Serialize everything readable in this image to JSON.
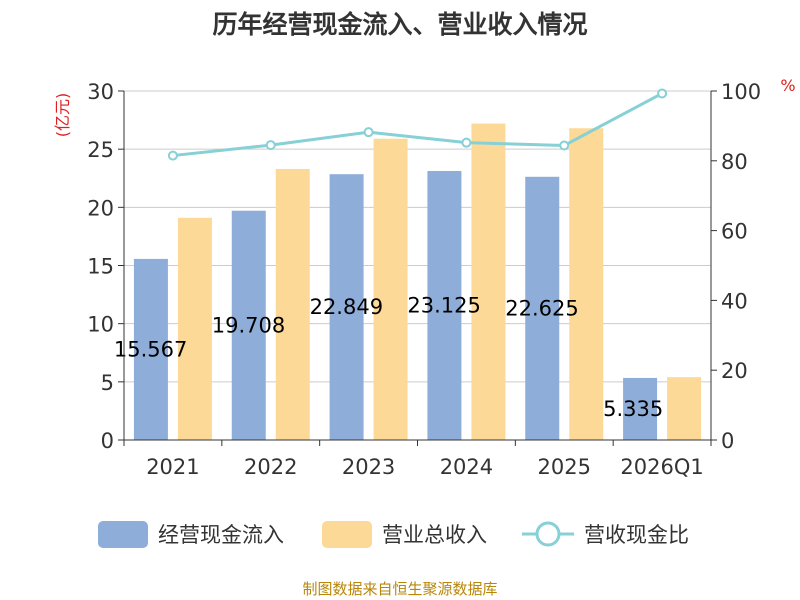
{
  "chart_data": {
    "type": "bar",
    "title": "历年经营现金流入、营业收入情况",
    "categories": [
      "2021",
      "2022",
      "2023",
      "2024",
      "2025",
      "2026Q1"
    ],
    "series": [
      {
        "name": "经营现金流入",
        "type": "bar",
        "axis": "left",
        "color": "#8eadd9",
        "values": [
          15.567,
          19.708,
          22.849,
          23.125,
          22.625,
          5.335
        ],
        "labels": [
          "15.567",
          "19.708",
          "22.849",
          "23.125",
          "22.625",
          "5.335"
        ]
      },
      {
        "name": "营业总收入",
        "type": "bar",
        "axis": "left",
        "color": "#fdd998",
        "values": [
          19.1,
          23.3,
          25.9,
          27.2,
          26.8,
          5.4
        ]
      },
      {
        "name": "营收现金比",
        "type": "line",
        "axis": "right",
        "color": "#86d0d6",
        "values": [
          81.5,
          84.5,
          88.2,
          85.2,
          84.4,
          99.3
        ]
      }
    ],
    "y_left": {
      "unit": "(亿元)",
      "min": 0,
      "max": 30,
      "ticks": [
        0,
        5,
        10,
        15,
        20,
        25,
        30
      ]
    },
    "y_right": {
      "unit": "%",
      "min": 0,
      "max": 100,
      "ticks": [
        0,
        20,
        40,
        60,
        80,
        100
      ]
    },
    "grid": true,
    "legend_position": "bottom"
  },
  "source": "制图数据来自恒生聚源数据库"
}
